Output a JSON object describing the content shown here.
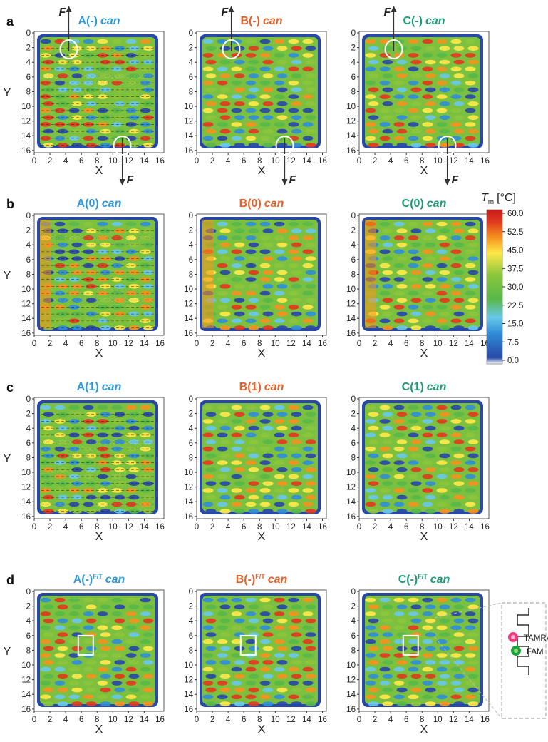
{
  "row_labels": [
    "a",
    "b",
    "c",
    "d"
  ],
  "panels": [
    {
      "row": 0,
      "col": 0,
      "title_prefix": "A(-)",
      "title_suffix": "can",
      "sup": "",
      "color": "#2f9ad8"
    },
    {
      "row": 0,
      "col": 1,
      "title_prefix": "B(-)",
      "title_suffix": "can",
      "sup": "",
      "color": "#e5632a"
    },
    {
      "row": 0,
      "col": 2,
      "title_prefix": "C(-)",
      "title_suffix": "can",
      "sup": "",
      "color": "#1f9b78"
    },
    {
      "row": 1,
      "col": 0,
      "title_prefix": "A(0)",
      "title_suffix": "can",
      "sup": "",
      "color": "#2f9ad8"
    },
    {
      "row": 1,
      "col": 1,
      "title_prefix": "B(0)",
      "title_suffix": "can",
      "sup": "",
      "color": "#e5632a"
    },
    {
      "row": 1,
      "col": 2,
      "title_prefix": "C(0)",
      "title_suffix": "can",
      "sup": "",
      "color": "#1f9b78"
    },
    {
      "row": 2,
      "col": 0,
      "title_prefix": "A(1)",
      "title_suffix": "can",
      "sup": "",
      "color": "#2f9ad8"
    },
    {
      "row": 2,
      "col": 1,
      "title_prefix": "B(1)",
      "title_suffix": "can",
      "sup": "",
      "color": "#e5632a"
    },
    {
      "row": 2,
      "col": 2,
      "title_prefix": "C(1)",
      "title_suffix": "can",
      "sup": "",
      "color": "#1f9b78"
    },
    {
      "row": 3,
      "col": 0,
      "title_prefix": "A(-)",
      "title_suffix": "can",
      "sup": "F/T",
      "color": "#2f9ad8"
    },
    {
      "row": 3,
      "col": 1,
      "title_prefix": "B(-)",
      "title_suffix": "can",
      "sup": "F/T",
      "color": "#e5632a"
    },
    {
      "row": 3,
      "col": 2,
      "title_prefix": "C(-)",
      "title_suffix": "can",
      "sup": "F/T",
      "color": "#1f9b78"
    }
  ],
  "chart_data": {
    "type": "heatmap",
    "x_label": "X",
    "y_label": "Y",
    "x_ticks": [
      "0",
      "2",
      "4",
      "6",
      "8",
      "10",
      "12",
      "14",
      "16"
    ],
    "y_ticks": [
      "0",
      "2",
      "4",
      "6",
      "8",
      "10",
      "12",
      "14",
      "16"
    ],
    "xlim": [
      0,
      16.5
    ],
    "ylim": [
      0,
      16.5
    ],
    "y_inverted": true,
    "force_label": "F",
    "colorbar": {
      "label_main": "T",
      "label_sub": "m",
      "label_unit": "[°C]",
      "ticks": [
        "60.0",
        "52.5",
        "45.0",
        "37.5",
        "30.0",
        "22.5",
        "15.0",
        "7.5",
        "0.0"
      ],
      "range": [
        0,
        60
      ],
      "colors": [
        "#ffffff",
        "#2848a8",
        "#2f8ed6",
        "#68c8ea",
        "#58b848",
        "#8cc63c",
        "#ffe84a",
        "#f5921e",
        "#e23a1e",
        "#c81a1a"
      ]
    },
    "inset_labels": [
      "TAMRA",
      "FAM"
    ]
  }
}
